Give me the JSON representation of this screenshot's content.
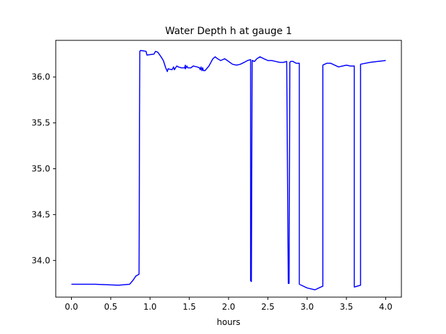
{
  "chart_data": {
    "type": "line",
    "title": "Water Depth h at gauge 1",
    "xlabel": "hours",
    "ylabel": "",
    "xlim": [
      -0.2,
      4.2
    ],
    "ylim": [
      33.6,
      36.4
    ],
    "x_ticks": [
      0.0,
      0.5,
      1.0,
      1.5,
      2.0,
      2.5,
      3.0,
      3.5,
      4.0
    ],
    "x_tick_labels": [
      "0.0",
      "0.5",
      "1.0",
      "1.5",
      "2.0",
      "2.5",
      "3.0",
      "3.5",
      "4.0"
    ],
    "y_ticks": [
      34.0,
      34.5,
      35.0,
      35.5,
      36.0
    ],
    "y_tick_labels": [
      "34.0",
      "34.5",
      "35.0",
      "35.5",
      "36.0"
    ],
    "grid": false,
    "series": [
      {
        "color": "#0000ff",
        "x": [
          0.0,
          0.3,
          0.6,
          0.74,
          0.78,
          0.82,
          0.86,
          0.87,
          0.88,
          0.95,
          0.96,
          1.05,
          1.07,
          1.1,
          1.14,
          1.17,
          1.2,
          1.22,
          1.23,
          1.28,
          1.3,
          1.31,
          1.34,
          1.36,
          1.4,
          1.44,
          1.45,
          1.45,
          1.47,
          1.48,
          1.52,
          1.55,
          1.6,
          1.63,
          1.64,
          1.65,
          1.66,
          1.67,
          1.68,
          1.7,
          1.75,
          1.8,
          1.83,
          1.86,
          1.9,
          1.95,
          2.0,
          2.05,
          2.1,
          2.15,
          2.2,
          2.24,
          2.28,
          2.28,
          2.29,
          2.3,
          2.31,
          2.32,
          2.33,
          2.33,
          2.36,
          2.4,
          2.45,
          2.5,
          2.55,
          2.6,
          2.65,
          2.7,
          2.74,
          2.76,
          2.77,
          2.78,
          2.79,
          2.82,
          2.86,
          2.9,
          2.9,
          3.0,
          3.1,
          3.15,
          3.2,
          3.2,
          3.25,
          3.3,
          3.35,
          3.4,
          3.45,
          3.5,
          3.55,
          3.57,
          3.6,
          3.6,
          3.68,
          3.68,
          3.8,
          3.9,
          4.0
        ],
        "y": [
          33.74,
          33.74,
          33.73,
          33.74,
          33.78,
          33.83,
          33.85,
          36.28,
          36.29,
          36.28,
          36.24,
          36.25,
          36.28,
          36.27,
          36.22,
          36.18,
          36.1,
          36.06,
          36.09,
          36.08,
          36.11,
          36.08,
          36.12,
          36.11,
          36.1,
          36.1,
          36.13,
          36.09,
          36.12,
          36.1,
          36.1,
          36.12,
          36.11,
          36.1,
          36.08,
          36.11,
          36.07,
          36.1,
          36.07,
          36.07,
          36.12,
          36.2,
          36.22,
          36.2,
          36.18,
          36.2,
          36.17,
          36.14,
          36.13,
          36.14,
          36.16,
          36.18,
          36.19,
          33.78,
          33.77,
          36.18,
          36.18,
          36.17,
          36.17,
          36.17,
          36.2,
          36.22,
          36.2,
          36.18,
          36.18,
          36.17,
          36.16,
          36.16,
          36.17,
          33.75,
          33.75,
          36.16,
          36.17,
          36.17,
          36.15,
          36.15,
          33.74,
          33.7,
          33.68,
          33.7,
          33.72,
          36.13,
          36.15,
          36.15,
          36.13,
          36.11,
          36.12,
          36.13,
          36.12,
          36.12,
          36.12,
          33.71,
          33.73,
          36.14,
          36.16,
          36.17,
          36.18
        ]
      }
    ]
  }
}
